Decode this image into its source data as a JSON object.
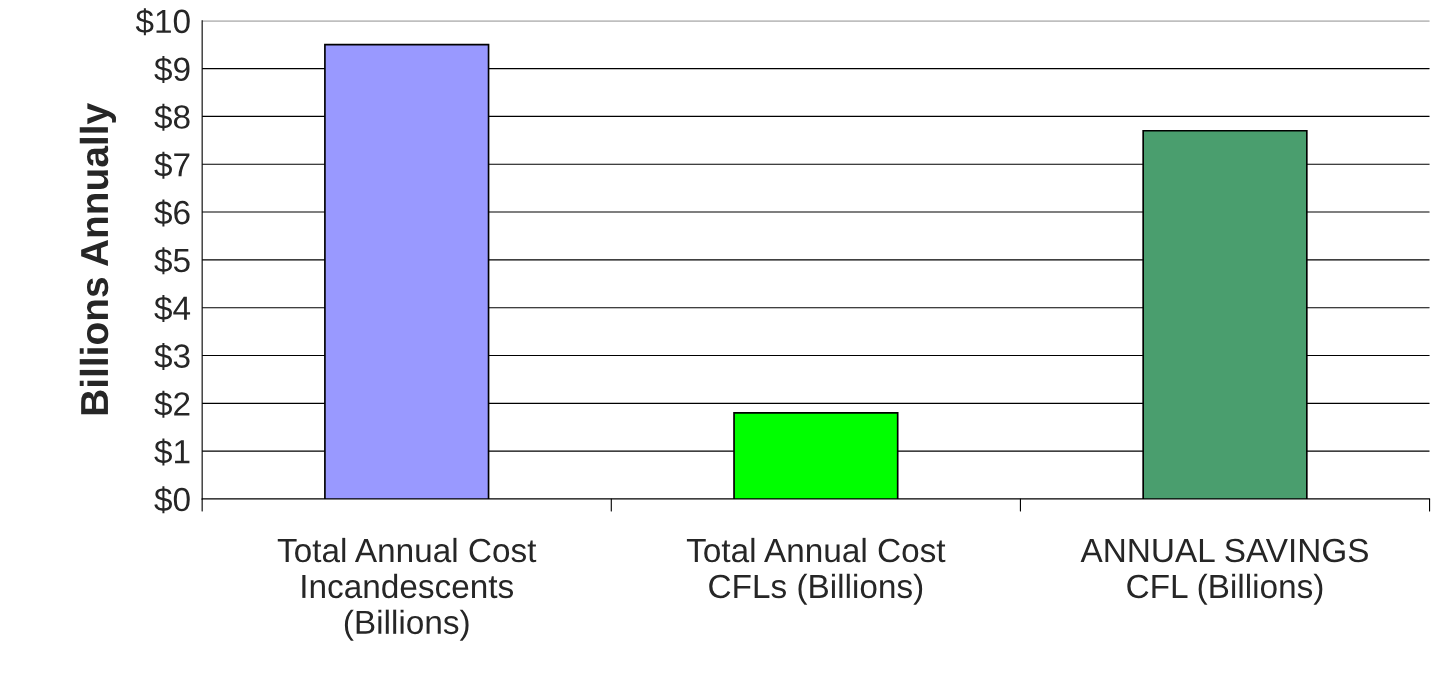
{
  "chart_data": {
    "type": "bar",
    "ylabel": "Billions Annually",
    "categories": [
      "Total Annual Cost\nIncandescents\n(Billions)",
      "Total Annual Cost\nCFLs (Billions)",
      "ANNUAL SAVINGS\nCFL (Billions)"
    ],
    "values": [
      9.5,
      1.8,
      7.7
    ],
    "colors": [
      "#9999ff",
      "#00ff00",
      "#4a9e6e"
    ],
    "ylim": [
      0,
      10
    ],
    "yticks": [
      {
        "value": 0,
        "label": "$0"
      },
      {
        "value": 1,
        "label": "$1"
      },
      {
        "value": 2,
        "label": "$2"
      },
      {
        "value": 3,
        "label": "$3"
      },
      {
        "value": 4,
        "label": "$4"
      },
      {
        "value": 5,
        "label": "$5"
      },
      {
        "value": 6,
        "label": "$6"
      },
      {
        "value": 7,
        "label": "$7"
      },
      {
        "value": 8,
        "label": "$8"
      },
      {
        "value": 9,
        "label": "$9"
      },
      {
        "value": 10,
        "label": "$10"
      }
    ],
    "grid": "y",
    "legend": false
  }
}
